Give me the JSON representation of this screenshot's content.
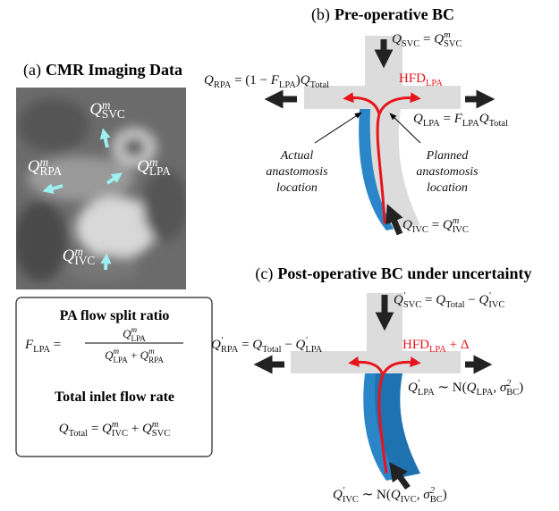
{
  "panel_a": {
    "label": "(a)",
    "title": "CMR Imaging Data",
    "svc": [
      {
        "b": "Q",
        "sub": "SVC",
        "sup": "m"
      }
    ],
    "rpa": [
      {
        "b": "Q",
        "sub": "RPA",
        "sup": "m"
      }
    ],
    "lpa": [
      {
        "b": "Q",
        "sub": "LPA",
        "sup": "m"
      }
    ],
    "ivc": [
      {
        "b": "Q",
        "sub": "IVC",
        "sup": "m"
      }
    ]
  },
  "summary_box": {
    "split_title": "PA flow split ratio",
    "split_lhs": [
      {
        "b": "F",
        "sub": "LPA"
      },
      " = "
    ],
    "split_num": [
      {
        "b": "Q",
        "sub": "LPA",
        "sup": "m"
      }
    ],
    "split_den": [
      {
        "b": "Q",
        "sub": "LPA",
        "sup": "m"
      },
      " + ",
      {
        "b": "Q",
        "sub": "RPA",
        "sup": "m"
      }
    ],
    "total_title": "Total inlet flow rate",
    "total_formula": [
      {
        "b": "Q",
        "sub": "Total"
      },
      " = ",
      {
        "b": "Q",
        "sub": "IVC",
        "sup": "m"
      },
      " + ",
      {
        "b": "Q",
        "sub": "SVC",
        "sup": "m"
      }
    ]
  },
  "panel_b": {
    "label": "(b)",
    "title": "Pre-operative BC",
    "svc": [
      {
        "b": "Q",
        "sub": "SVC"
      },
      " = ",
      {
        "b": "Q",
        "sub": "SVC",
        "sup": "m"
      }
    ],
    "rpa": [
      {
        "b": "Q",
        "sub": "RPA"
      },
      " = (1 − ",
      {
        "b": "F",
        "sub": "LPA"
      },
      ")",
      {
        "b": "Q",
        "sub": "Total"
      }
    ],
    "hfd": [
      {
        "b": "HFD",
        "sub": "LPA"
      }
    ],
    "lpa": [
      {
        "b": "Q",
        "sub": "LPA"
      },
      " = ",
      {
        "b": "F",
        "sub": "LPA"
      },
      {
        "b": "Q",
        "sub": "Total"
      }
    ],
    "ivc": [
      {
        "b": "Q",
        "sub": "IVC"
      },
      " = ",
      {
        "b": "Q",
        "sub": "IVC",
        "sup": "m"
      }
    ],
    "actual_note": [
      "Actual",
      "anastomosis",
      "location"
    ],
    "planned_note": [
      "Planned",
      "anastomosis",
      "location"
    ]
  },
  "panel_c": {
    "label": "(c)",
    "title": "Post-operative BC under uncertainty",
    "svc": [
      {
        "b": "Q",
        "sub": "SVC",
        "sup": "′"
      },
      " = ",
      {
        "b": "Q",
        "sub": "Total"
      },
      " − ",
      {
        "b": "Q",
        "sub": "IVC",
        "sup": "′"
      }
    ],
    "rpa": [
      {
        "b": "Q",
        "sub": "RPA",
        "sup": "′"
      },
      " = ",
      {
        "b": "Q",
        "sub": "Total"
      },
      " − ",
      {
        "b": "Q",
        "sub": "LPA",
        "sup": "′"
      }
    ],
    "hfd": [
      {
        "b": "HFD",
        "sub": "LPA"
      },
      " + Δ"
    ],
    "lpa": [
      {
        "b": "Q",
        "sub": "LPA",
        "sup": "′"
      },
      " ∼ N(",
      {
        "b": "Q",
        "sub": "LPA"
      },
      ", ",
      {
        "b": "σ",
        "sub": "BC",
        "sup": "2"
      },
      ")"
    ],
    "ivc": [
      {
        "b": "Q",
        "sub": "IVC",
        "sup": "′"
      },
      " ∼ N(",
      {
        "b": "Q",
        "sub": "IVC"
      },
      ", ",
      {
        "b": "σ",
        "sub": "BC",
        "sup": "2"
      },
      ")"
    ]
  }
}
